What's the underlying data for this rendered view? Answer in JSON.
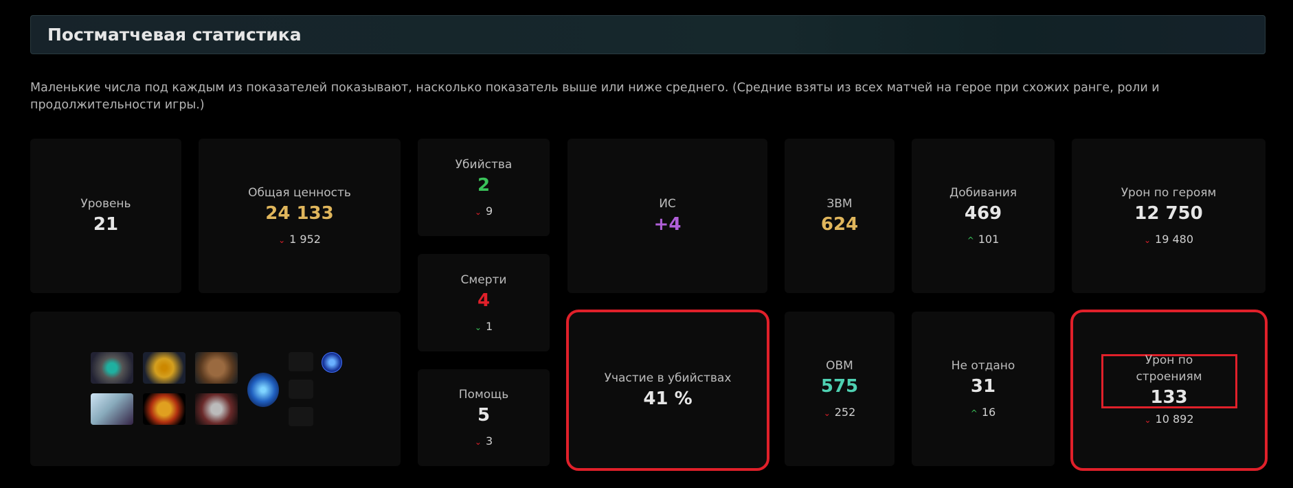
{
  "header": {
    "title": "Постматчевая статистика"
  },
  "description": "Маленькие числа под каждым из показателей показывают, насколько показатель выше или ниже среднего. (Средние взяты из всех матчей на герое при схожих ранге, роли и продолжительности игры.)",
  "colors": {
    "gold": "#e0b65c",
    "green": "#3ac35a",
    "red": "#e0202a",
    "purple": "#b05fd8",
    "teal": "#4fd1b2",
    "highlight": "#e0202a"
  },
  "stats": {
    "level": {
      "label": "Уровень",
      "value": "21"
    },
    "networth": {
      "label": "Общая ценность",
      "value": "24 133",
      "delta": "1 952",
      "dir": "down"
    },
    "kills": {
      "label": "Убийства",
      "value": "2",
      "delta": "9",
      "dir": "down"
    },
    "deaths": {
      "label": "Смерти",
      "value": "4",
      "delta": "1",
      "dir": "down-good"
    },
    "assists": {
      "label": "Помощь",
      "value": "5",
      "delta": "3",
      "dir": "down"
    },
    "imp": {
      "label": "ИС",
      "value": "+4"
    },
    "gpm": {
      "label": "ЗВМ",
      "value": "624"
    },
    "last_hits": {
      "label": "Добивания",
      "value": "469",
      "delta": "101",
      "dir": "up"
    },
    "hero_damage": {
      "label": "Урон по героям",
      "value": "12 750",
      "delta": "19 480",
      "dir": "down"
    },
    "kill_participation": {
      "label": "Участие в убийствах",
      "value": "41 %"
    },
    "xpm": {
      "label": "ОВМ",
      "value": "575",
      "delta": "252",
      "dir": "down"
    },
    "denies": {
      "label": "Не отдано",
      "value": "31",
      "delta": "16",
      "dir": "up"
    },
    "building_damage": {
      "label": "Урон по строениям",
      "value": "133",
      "delta": "10 892",
      "dir": "down"
    }
  },
  "items": [
    "eye-item",
    "golden-helm-item",
    "boots-item",
    "moon-axe-item",
    "golden-scepter-item",
    "skull-mask-item"
  ],
  "neutral_item": "blue-blade-item",
  "buff": "aghanim-shard-icon"
}
